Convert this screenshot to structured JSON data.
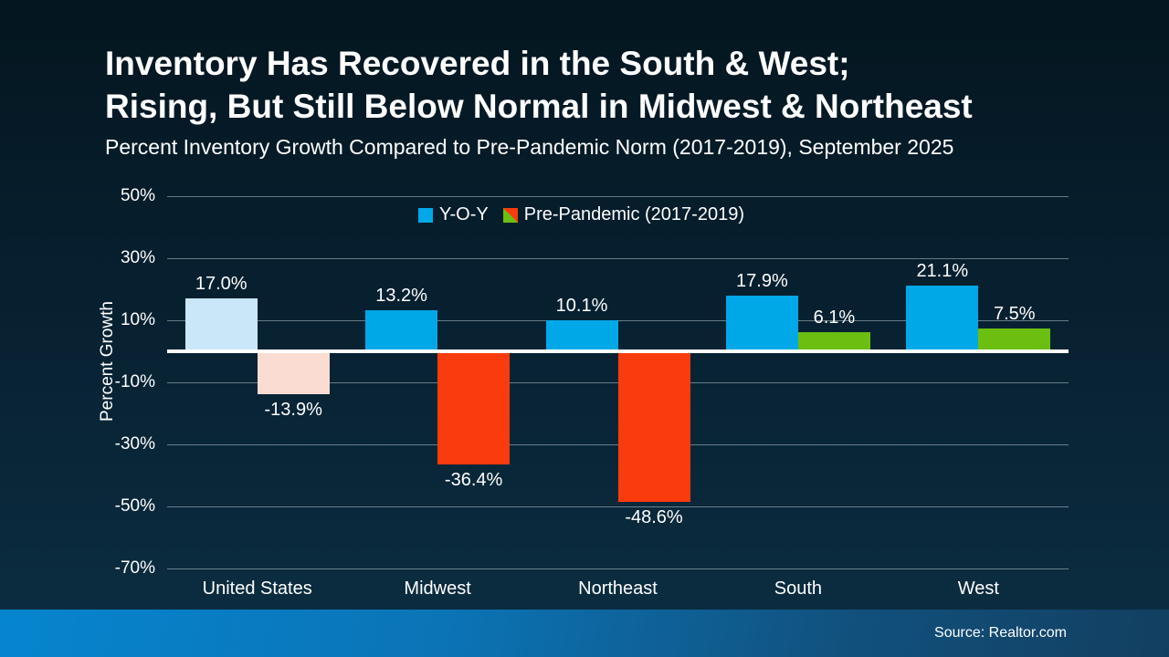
{
  "header": {
    "title_line1": "Inventory Has Recovered in the South & West;",
    "title_line2": "Rising, But Still Below Normal in Midwest & Northeast",
    "subtitle": "Percent Inventory Growth Compared to Pre-Pandemic Norm (2017-2019), September 2025"
  },
  "chart_data": {
    "type": "bar",
    "title": "Percent Inventory Growth Compared to Pre-Pandemic Norm (2017-2019), September 2025",
    "xlabel": "",
    "ylabel": "Percent Growth",
    "ylim": [
      -70,
      50
    ],
    "grid": true,
    "legend_position": "top-center",
    "categories": [
      "United States",
      "Midwest",
      "Northeast",
      "South",
      "West"
    ],
    "series": [
      {
        "name": "Y-O-Y",
        "values": [
          17.0,
          13.2,
          10.1,
          17.9,
          21.1
        ],
        "labels": [
          "17.0%",
          "13.2%",
          "10.1%",
          "17.9%",
          "21.1%"
        ],
        "colors": [
          "#c9e7f9",
          "#00a8e8",
          "#00a8e8",
          "#00a8e8",
          "#00a8e8"
        ]
      },
      {
        "name": "Pre-Pandemic (2017-2019)",
        "values": [
          -13.9,
          -36.4,
          -48.6,
          6.1,
          7.5
        ],
        "labels": [
          "-13.9%",
          "-36.4%",
          "-48.6%",
          "6.1%",
          "7.5%"
        ],
        "colors": [
          "#fbdcd2",
          "#fa3b0e",
          "#fa3b0e",
          "#6cbe11",
          "#6cbe11"
        ]
      }
    ],
    "yticks": [
      50,
      30,
      10,
      -10,
      -30,
      -50,
      -70
    ],
    "ytick_labels": [
      "50%",
      "30%",
      "10%",
      "-10%",
      "-30%",
      "-50%",
      "-70%"
    ],
    "legend": [
      {
        "label": "Y-O-Y",
        "swatch": "#00a8e8"
      },
      {
        "label": "Pre-Pandemic (2017-2019)",
        "swatch_split": [
          "#6cbe11",
          "#fa3b0e"
        ]
      }
    ]
  },
  "footer": {
    "source": "Source: Realtor.com"
  },
  "colors": {
    "background_top": "#04161f",
    "background_bottom": "#0c2e42",
    "text": "#ffffff",
    "yoy_blue": "#00a8e8",
    "yoy_blue_muted": "#c9e7f9",
    "prepandemic_red": "#fa3b0e",
    "prepandemic_red_muted": "#fbdcd2",
    "prepandemic_green": "#6cbe11",
    "footer_blue_left": "#0685cf",
    "footer_blue_right": "#123f60",
    "gridline": "#bac7ce",
    "zero_line": "#ffffff"
  }
}
